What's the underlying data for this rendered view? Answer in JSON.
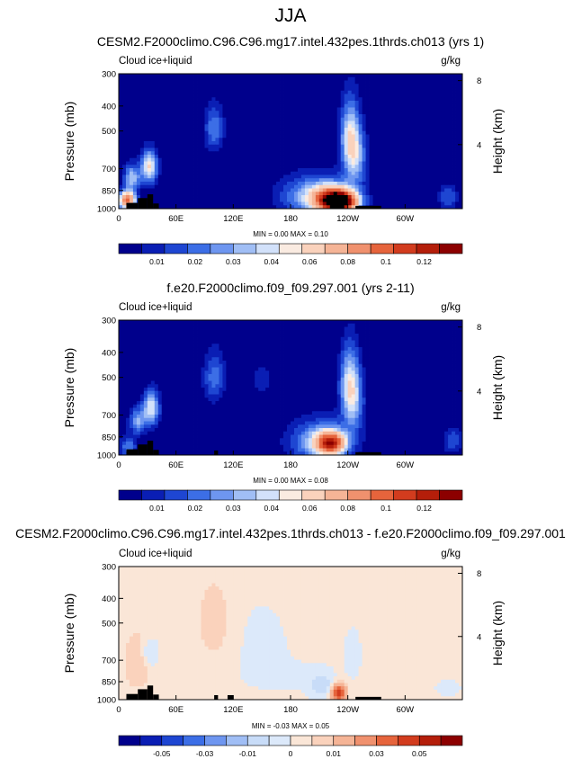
{
  "figure": {
    "title": "JJA"
  },
  "colors": {
    "abs": [
      "#00008c",
      "#0a1eb4",
      "#1e46d2",
      "#3c6ee6",
      "#6e96f0",
      "#a0bef5",
      "#d2e1fa",
      "#faebe1",
      "#fad2bc",
      "#f5b496",
      "#f0916e",
      "#e6643c",
      "#d23c1e",
      "#b41e0a",
      "#8c0000"
    ],
    "diff": [
      "#00008c",
      "#0a1eb4",
      "#1e46d2",
      "#3c6ee6",
      "#6e96f0",
      "#a0bef5",
      "#c8dcf8",
      "#dce9fa",
      "#fae6d7",
      "#fad2bc",
      "#f5b496",
      "#f0916e",
      "#e6643c",
      "#d23c1e",
      "#b41e0a",
      "#8c0000"
    ],
    "terrain": "#000000"
  },
  "chart_data": [
    {
      "type": "heatmap",
      "id": "panel1",
      "title": "CESM2.F2000climo.C96.C96.mg17.intel.432pes.1thrds.ch013 (yrs 1)",
      "left_label": "Cloud ice+liquid",
      "right_label": "g/kg",
      "ylabel": "Pressure (mb)",
      "ylabel_right": "Height (km)",
      "xticks": [
        "0",
        "60E",
        "120E",
        "180",
        "120W",
        "60W"
      ],
      "xtick_lon": [
        0,
        60,
        120,
        180,
        240,
        300
      ],
      "xlim": [
        0,
        360
      ],
      "yticks": [
        "300",
        "400",
        "500",
        "700",
        "850",
        "1000"
      ],
      "ytick_p": [
        300,
        400,
        500,
        700,
        850,
        1000
      ],
      "ylim": [
        1000,
        300
      ],
      "yscale": "log",
      "height_ticks": [
        "8",
        "4"
      ],
      "stats": "MIN =   0.00  MAX =   0.10",
      "min": 0.0,
      "max": 0.1,
      "colorbar_labels": [
        "0.01",
        "0.02",
        "0.03",
        "0.04",
        "0.06",
        "0.08",
        "0.1",
        "0.12"
      ],
      "levels": [
        0.005,
        0.01,
        0.015,
        0.02,
        0.025,
        0.03,
        0.035,
        0.04,
        0.05,
        0.06,
        0.07,
        0.08,
        0.09,
        0.1,
        0.11,
        0.12
      ],
      "features": [
        {
          "lon": 32,
          "p": 690,
          "amp": 0.04,
          "wlon": 6,
          "wp": 70
        },
        {
          "lon": 14,
          "p": 760,
          "amp": 0.03,
          "wlon": 6,
          "wp": 60
        },
        {
          "lon": 9,
          "p": 930,
          "amp": 0.075,
          "wlon": 6,
          "wp": 50
        },
        {
          "lon": 100,
          "p": 490,
          "amp": 0.02,
          "wlon": 7,
          "wp": 70
        },
        {
          "lon": 207,
          "p": 900,
          "amp": 0.03,
          "wlon": 25,
          "wp": 110
        },
        {
          "lon": 232,
          "p": 940,
          "amp": 0.1,
          "wlon": 12,
          "wp": 55
        },
        {
          "lon": 224,
          "p": 920,
          "amp": 0.06,
          "wlon": 14,
          "wp": 70
        },
        {
          "lon": 242,
          "p": 520,
          "amp": 0.03,
          "wlon": 7,
          "wp": 110
        },
        {
          "lon": 248,
          "p": 640,
          "amp": 0.025,
          "wlon": 8,
          "wp": 120
        },
        {
          "lon": 345,
          "p": 900,
          "amp": 0.015,
          "wlon": 7,
          "wp": 70
        }
      ],
      "terrain": [
        {
          "lon0": 8,
          "lon1": 20,
          "p": 950
        },
        {
          "lon0": 20,
          "lon1": 30,
          "p": 910
        },
        {
          "lon0": 30,
          "lon1": 36,
          "p": 880
        },
        {
          "lon0": 36,
          "lon1": 42,
          "p": 955
        },
        {
          "lon0": 248,
          "lon1": 275,
          "p": 975
        }
      ]
    },
    {
      "type": "heatmap",
      "id": "panel2",
      "title": "f.e20.F2000climo.f09_f09.297.001 (yrs 2-11)",
      "left_label": "Cloud ice+liquid",
      "right_label": "g/kg",
      "ylabel": "Pressure (mb)",
      "ylabel_right": "Height (km)",
      "xticks": [
        "0",
        "60E",
        "120E",
        "180",
        "120W",
        "60W"
      ],
      "xtick_lon": [
        0,
        60,
        120,
        180,
        240,
        300
      ],
      "xlim": [
        0,
        360
      ],
      "yticks": [
        "300",
        "400",
        "500",
        "700",
        "850",
        "1000"
      ],
      "ytick_p": [
        300,
        400,
        500,
        700,
        850,
        1000
      ],
      "ylim": [
        1000,
        300
      ],
      "yscale": "log",
      "height_ticks": [
        "8",
        "4"
      ],
      "stats": "MIN =   0.00  MAX =   0.08",
      "min": 0.0,
      "max": 0.08,
      "colorbar_labels": [
        "0.01",
        "0.02",
        "0.03",
        "0.04",
        "0.06",
        "0.08",
        "0.1",
        "0.12"
      ],
      "levels": [
        0.005,
        0.01,
        0.015,
        0.02,
        0.025,
        0.03,
        0.035,
        0.04,
        0.05,
        0.06,
        0.07,
        0.08,
        0.09,
        0.1,
        0.11,
        0.12
      ],
      "features": [
        {
          "lon": 34,
          "p": 660,
          "amp": 0.035,
          "wlon": 6,
          "wp": 70
        },
        {
          "lon": 20,
          "p": 740,
          "amp": 0.025,
          "wlon": 6,
          "wp": 60
        },
        {
          "lon": 10,
          "p": 930,
          "amp": 0.02,
          "wlon": 6,
          "wp": 60
        },
        {
          "lon": 100,
          "p": 500,
          "amp": 0.018,
          "wlon": 8,
          "wp": 80
        },
        {
          "lon": 150,
          "p": 510,
          "amp": 0.01,
          "wlon": 6,
          "wp": 50
        },
        {
          "lon": 212,
          "p": 890,
          "amp": 0.03,
          "wlon": 22,
          "wp": 110
        },
        {
          "lon": 222,
          "p": 900,
          "amp": 0.08,
          "wlon": 10,
          "wp": 60
        },
        {
          "lon": 242,
          "p": 520,
          "amp": 0.03,
          "wlon": 7,
          "wp": 110
        },
        {
          "lon": 246,
          "p": 640,
          "amp": 0.02,
          "wlon": 8,
          "wp": 120
        },
        {
          "lon": 350,
          "p": 880,
          "amp": 0.015,
          "wlon": 7,
          "wp": 70
        }
      ],
      "terrain": [
        {
          "lon0": 8,
          "lon1": 20,
          "p": 950
        },
        {
          "lon0": 20,
          "lon1": 30,
          "p": 910
        },
        {
          "lon0": 30,
          "lon1": 36,
          "p": 880
        },
        {
          "lon0": 36,
          "lon1": 42,
          "p": 955
        },
        {
          "lon0": 100,
          "lon1": 104,
          "p": 960
        },
        {
          "lon0": 248,
          "lon1": 275,
          "p": 975
        }
      ]
    },
    {
      "type": "heatmap",
      "id": "panel3",
      "title": "CESM2.F2000climo.C96.C96.mg17.intel.432pes.1thrds.ch013 - f.e20.F2000climo.f09_f09.297.001",
      "left_label": "Cloud ice+liquid",
      "right_label": "g/kg",
      "ylabel": "Pressure (mb)",
      "ylabel_right": "Height (km)",
      "xticks": [
        "0",
        "60E",
        "120E",
        "180",
        "120W",
        "60W"
      ],
      "xtick_lon": [
        0,
        60,
        120,
        180,
        240,
        300
      ],
      "xlim": [
        0,
        360
      ],
      "yticks": [
        "300",
        "400",
        "500",
        "700",
        "850",
        "1000"
      ],
      "ytick_p": [
        300,
        400,
        500,
        700,
        850,
        1000
      ],
      "ylim": [
        1000,
        300
      ],
      "yscale": "log",
      "height_ticks": [
        "8",
        "4"
      ],
      "stats": "MIN =  -0.03  MAX =   0.05",
      "min": -0.03,
      "max": 0.05,
      "colorbar_labels": [
        "-0.05",
        "-0.03",
        "-0.01",
        "0",
        "0.01",
        "0.03",
        "0.05"
      ],
      "levels": [
        -0.07,
        -0.06,
        -0.05,
        -0.04,
        -0.03,
        -0.02,
        -0.01,
        0.0,
        0.005,
        0.01,
        0.02,
        0.03,
        0.04,
        0.05,
        0.06,
        0.07
      ],
      "background": 0.002,
      "features": [
        {
          "lon": 34,
          "p": 660,
          "amp": -0.015,
          "wlon": 5,
          "wp": 50
        },
        {
          "lon": 20,
          "p": 720,
          "amp": 0.006,
          "wlon": 12,
          "wp": 150
        },
        {
          "lon": 100,
          "p": 500,
          "amp": 0.005,
          "wlon": 15,
          "wp": 150
        },
        {
          "lon": 150,
          "p": 600,
          "amp": -0.004,
          "wlon": 20,
          "wp": 150
        },
        {
          "lon": 180,
          "p": 820,
          "amp": -0.003,
          "wlon": 40,
          "wp": 100
        },
        {
          "lon": 212,
          "p": 880,
          "amp": -0.02,
          "wlon": 8,
          "wp": 60
        },
        {
          "lon": 230,
          "p": 940,
          "amp": 0.05,
          "wlon": 5,
          "wp": 50
        },
        {
          "lon": 245,
          "p": 660,
          "amp": -0.01,
          "wlon": 5,
          "wp": 80
        },
        {
          "lon": 345,
          "p": 900,
          "amp": -0.008,
          "wlon": 8,
          "wp": 40
        }
      ],
      "terrain": [
        {
          "lon0": 8,
          "lon1": 20,
          "p": 950
        },
        {
          "lon0": 20,
          "lon1": 30,
          "p": 910
        },
        {
          "lon0": 30,
          "lon1": 36,
          "p": 880
        },
        {
          "lon0": 36,
          "lon1": 42,
          "p": 955
        },
        {
          "lon0": 100,
          "lon1": 104,
          "p": 960
        },
        {
          "lon0": 114,
          "lon1": 120,
          "p": 960
        },
        {
          "lon0": 248,
          "lon1": 275,
          "p": 975
        }
      ]
    }
  ]
}
